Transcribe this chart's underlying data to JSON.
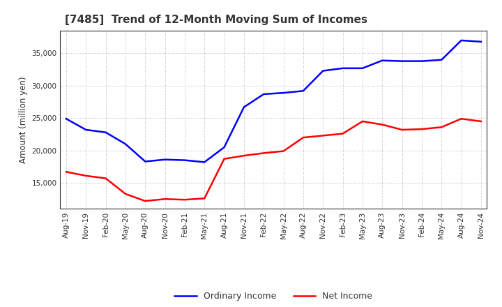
{
  "title": "[7485]  Trend of 12-Month Moving Sum of Incomes",
  "ylabel": "Amount (million yen)",
  "x_labels": [
    "Aug-19",
    "Nov-19",
    "Feb-20",
    "May-20",
    "Aug-20",
    "Nov-20",
    "Feb-21",
    "May-21",
    "Aug-21",
    "Nov-21",
    "Feb-22",
    "May-22",
    "Aug-22",
    "Nov-22",
    "Feb-23",
    "May-23",
    "Aug-23",
    "Nov-23",
    "Feb-24",
    "May-24",
    "Aug-24",
    "Nov-24"
  ],
  "ordinary_income": [
    24900,
    23200,
    22800,
    21000,
    18300,
    18600,
    18500,
    18200,
    20500,
    26700,
    28700,
    28900,
    29200,
    32300,
    32700,
    32700,
    33900,
    33800,
    33800,
    34000,
    37000,
    36800
  ],
  "net_income": [
    16700,
    16100,
    15700,
    13300,
    12200,
    12500,
    12400,
    12600,
    18700,
    19200,
    19600,
    19900,
    22000,
    22300,
    22600,
    24500,
    24000,
    23200,
    23300,
    23600,
    24900,
    24500
  ],
  "ordinary_color": "#0000FF",
  "net_color": "#FF0000",
  "background_color": "#FFFFFF",
  "grid_color": "#999999",
  "ylim_min": 11000,
  "ylim_max": 38500,
  "yticks": [
    15000,
    20000,
    25000,
    30000,
    35000
  ],
  "title_fontsize": 11,
  "title_color": "#333333",
  "legend_labels": [
    "Ordinary Income",
    "Net Income"
  ]
}
